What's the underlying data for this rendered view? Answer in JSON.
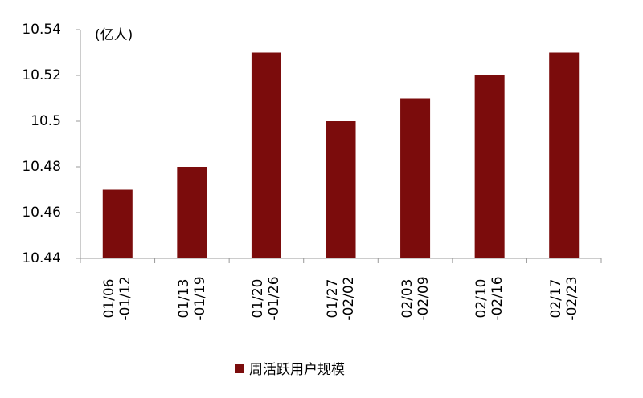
{
  "chart_data": {
    "type": "bar",
    "y_label": "(亿人)",
    "categories": [
      "01/06\n-01/12",
      "01/13\n-01/19",
      "01/20\n-01/26",
      "01/27\n-02/02",
      "02/03\n-02/09",
      "02/10\n-02/16",
      "02/17\n-02/23"
    ],
    "series": [
      {
        "name": "周活跃用户规模",
        "color": "#7b0c0c",
        "values": [
          10.47,
          10.48,
          10.53,
          10.5,
          10.51,
          10.52,
          10.53
        ]
      }
    ],
    "ylim": [
      10.44,
      10.54
    ],
    "yticks": [
      10.44,
      10.46,
      10.48,
      10.5,
      10.52,
      10.54
    ],
    "grid": false,
    "legend": "bottom"
  }
}
